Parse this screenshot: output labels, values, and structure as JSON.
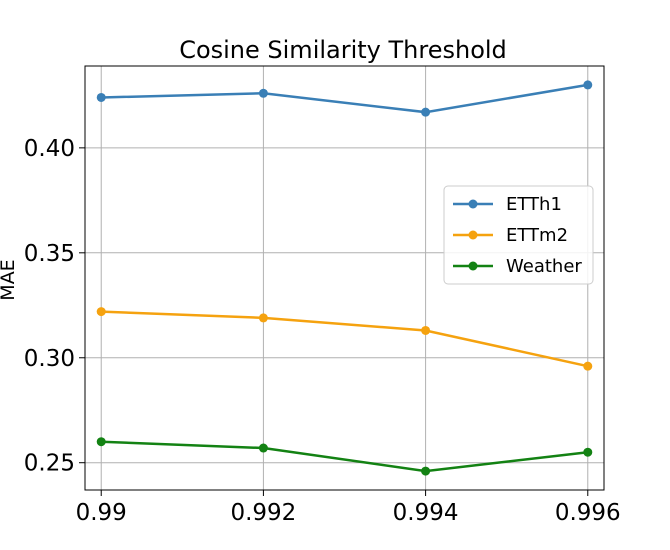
{
  "chart_data": {
    "type": "line",
    "title": "Cosine Similarity Threshold",
    "xlabel": "",
    "ylabel": "MAE",
    "x": [
      0.99,
      0.992,
      0.994,
      0.996
    ],
    "x_tick_labels": [
      "0.99",
      "0.992",
      "0.994",
      "0.996"
    ],
    "y_ticks": [
      0.25,
      0.3,
      0.35,
      0.4
    ],
    "y_tick_labels": [
      "0.25",
      "0.30",
      "0.35",
      "0.40"
    ],
    "xlim": [
      0.9898,
      0.9962
    ],
    "ylim": [
      0.237,
      0.439
    ],
    "grid": true,
    "legend_position": "center-right",
    "series": [
      {
        "name": "ETTh1",
        "color": "#3a7fb6",
        "values": [
          0.424,
          0.426,
          0.417,
          0.43
        ]
      },
      {
        "name": "ETTm2",
        "color": "#f5a20f",
        "values": [
          0.322,
          0.319,
          0.313,
          0.296
        ]
      },
      {
        "name": "Weather",
        "color": "#138213",
        "values": [
          0.26,
          0.257,
          0.246,
          0.255
        ]
      }
    ]
  }
}
